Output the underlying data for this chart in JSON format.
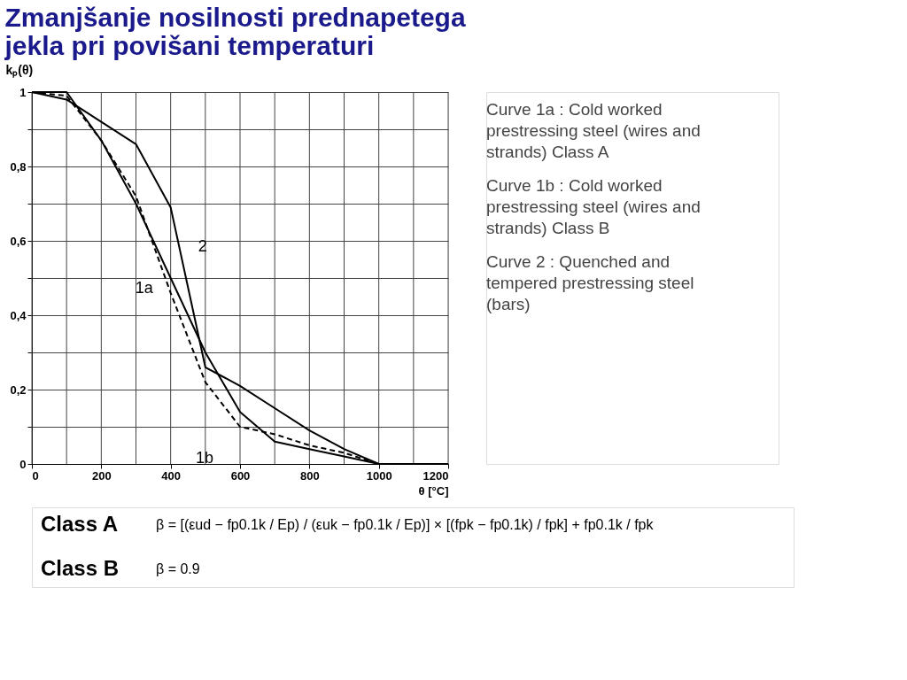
{
  "chart_data": {
    "type": "line",
    "title": "Zmanjšanje nosilnosti prednapetega jekla pri povišani temperaturi",
    "xlabel": "θ [°C]",
    "ylabel": "kₚ(θ)",
    "x": [
      0,
      100,
      200,
      300,
      400,
      500,
      600,
      700,
      800,
      900,
      1000,
      1100,
      1200
    ],
    "series": [
      {
        "name": "1a",
        "color": "#000000",
        "line_style": "solid",
        "values": [
          1,
          1,
          0.87,
          0.7,
          0.5,
          0.3,
          0.14,
          0.06,
          0.04,
          0.02,
          0,
          0,
          0
        ]
      },
      {
        "name": "1b",
        "color": "#000000",
        "line_style": "dashed",
        "values": [
          1,
          0.99,
          0.87,
          0.72,
          0.46,
          0.22,
          0.1,
          0.08,
          0.05,
          0.03,
          0,
          0,
          0
        ]
      },
      {
        "name": "2",
        "color": "#000000",
        "line_style": "solid",
        "values": [
          1,
          0.98,
          0.92,
          0.86,
          0.69,
          0.26,
          0.21,
          0.15,
          0.09,
          0.04,
          0,
          0,
          0
        ]
      }
    ],
    "xlim": [
      0,
      1200
    ],
    "ylim": [
      0,
      1
    ],
    "xticks": [
      0,
      {
        "value": 100,
        "label": null
      },
      200,
      {
        "value": 300,
        "label": null
      },
      400,
      {
        "value": 500,
        "label": null
      },
      600,
      {
        "value": 700,
        "label": null
      },
      800,
      {
        "value": 900,
        "label": null
      },
      1000,
      {
        "value": 1100,
        "label": null
      },
      1200
    ],
    "yticks": [
      0,
      {
        "value": 0.1,
        "label": null
      },
      {
        "value": 0.2,
        "label": "0,2"
      },
      {
        "value": 0.3,
        "label": null
      },
      {
        "value": 0.4,
        "label": "0,4"
      },
      {
        "value": 0.5,
        "label": null
      },
      {
        "value": 0.6,
        "label": "0,6"
      },
      {
        "value": 0.7,
        "label": null
      },
      {
        "value": 0.8,
        "label": "0,8"
      },
      {
        "value": 0.9,
        "label": null
      },
      1
    ],
    "grid": true,
    "legend": false,
    "marker": "none",
    "annotations": [
      "Curve 1a : Cold worked prestressing steel (wires and strands) Class A",
      "Curve 1b : Cold worked prestressing steel (wires and strands) Class B",
      "Curve 2 : Quenched and tempered prestressing steel (bars)",
      "Class A",
      "β = [(εud − fp0.1k / Ep) / (εuk − fp0.1k / Ep)] × [(fpk − fp0.1k) / fpk] + fp0.1k / fpk",
      "Class B",
      "β = 0.9"
    ]
  }
}
